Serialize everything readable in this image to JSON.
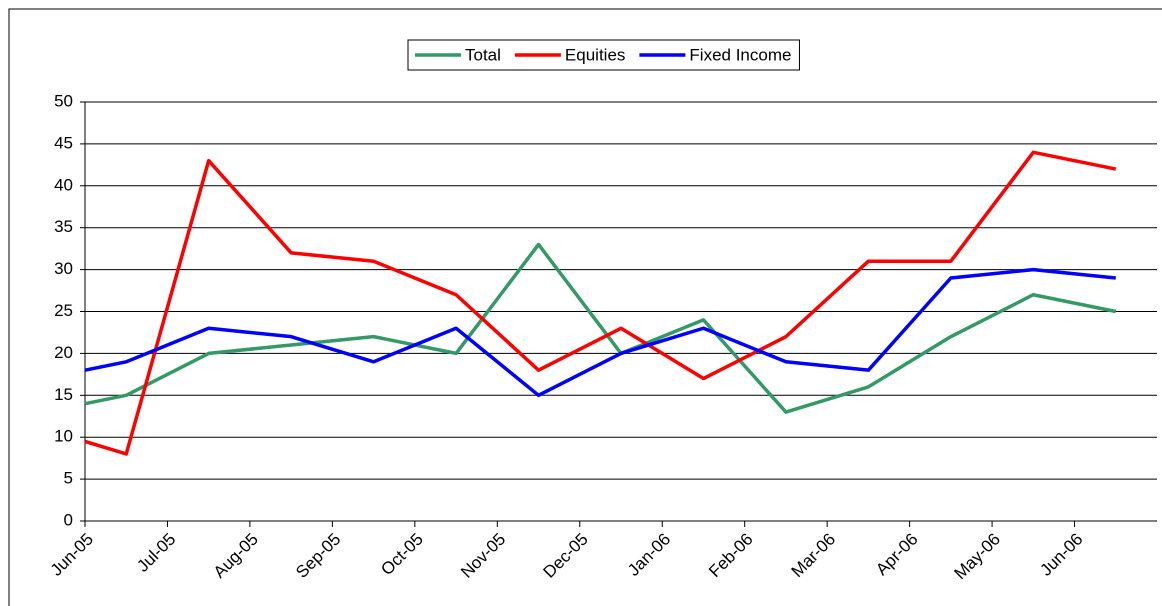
{
  "chart_data": {
    "type": "line",
    "x": [
      0,
      0.5,
      1.5,
      2.5,
      3.5,
      4.5,
      5.5,
      6.5,
      7.5,
      8.5,
      9.5,
      10.5,
      11.5,
      12.5
    ],
    "series": [
      {
        "name": "Total",
        "color": "#339966",
        "values": [
          14,
          15,
          20,
          21,
          22,
          20,
          33,
          20,
          24,
          13,
          16,
          22,
          27,
          25
        ]
      },
      {
        "name": "Equities",
        "color": "#ff0000",
        "values": [
          9.5,
          8,
          43,
          32,
          31,
          27,
          18,
          23,
          17,
          22,
          31,
          31,
          44,
          42
        ]
      },
      {
        "name": "Fixed Income",
        "color": "#0000ff",
        "values": [
          18,
          19,
          23,
          22,
          19,
          23,
          15,
          20,
          23,
          19,
          18,
          29,
          30,
          29
        ]
      }
    ],
    "xlim": [
      0,
      13
    ],
    "xticks": [
      {
        "value": 0,
        "label": "Jun-05"
      },
      {
        "value": 1,
        "label": "Jul-05"
      },
      {
        "value": 2,
        "label": "Aug-05"
      },
      {
        "value": 3,
        "label": "Sep-05"
      },
      {
        "value": 4,
        "label": "Oct-05"
      },
      {
        "value": 5,
        "label": "Nov-05"
      },
      {
        "value": 6,
        "label": "Dec-05"
      },
      {
        "value": 7,
        "label": "Jan-06"
      },
      {
        "value": 8,
        "label": "Feb-06"
      },
      {
        "value": 9,
        "label": "Mar-06"
      },
      {
        "value": 10,
        "label": "Apr-06"
      },
      {
        "value": 11,
        "label": "May-06"
      },
      {
        "value": 12,
        "label": "Jun-06"
      }
    ],
    "ylim": [
      0,
      50
    ],
    "yticks": [
      0,
      5,
      10,
      15,
      20,
      25,
      30,
      35,
      40,
      45,
      50
    ],
    "grid": true,
    "legend": "top"
  }
}
